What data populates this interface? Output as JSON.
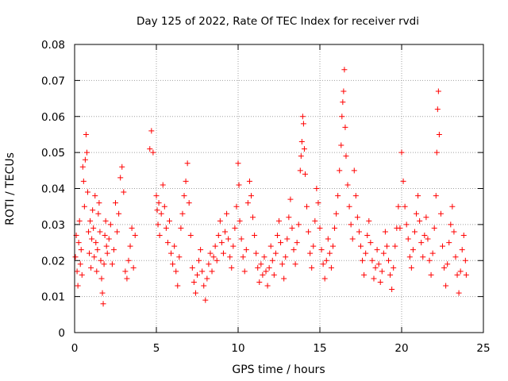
{
  "chart_data": {
    "type": "scatter",
    "title": "Day 125 of 2022, Rate Of TEC Index for receiver rvdi",
    "xlabel": "GPS time / hours",
    "ylabel": "ROTI / TECUs",
    "xlim": [
      0,
      25
    ],
    "ylim": [
      0,
      0.08
    ],
    "x_ticks": [
      0,
      5,
      10,
      15,
      20,
      25
    ],
    "y_ticks": [
      0,
      0.01,
      0.02,
      0.03,
      0.04,
      0.05,
      0.06,
      0.07,
      0.08
    ],
    "x_tick_labels": [
      "0",
      "5",
      "10",
      "15",
      "20",
      "25"
    ],
    "y_tick_labels": [
      "0",
      "0.01",
      "0.02",
      "0.03",
      "0.04",
      "0.05",
      "0.06",
      "0.07",
      "0.08"
    ],
    "grid": true,
    "marker": "plus",
    "color": "#ff0000",
    "series": [
      {
        "points": [
          [
            0.05,
            0.021
          ],
          [
            0.1,
            0.027
          ],
          [
            0.15,
            0.017
          ],
          [
            0.2,
            0.013
          ],
          [
            0.25,
            0.025
          ],
          [
            0.3,
            0.031
          ],
          [
            0.35,
            0.019
          ],
          [
            0.4,
            0.023
          ],
          [
            0.45,
            0.016
          ],
          [
            0.5,
            0.046
          ],
          [
            0.55,
            0.042
          ],
          [
            0.6,
            0.035
          ],
          [
            0.65,
            0.048
          ],
          [
            0.7,
            0.055
          ],
          [
            0.75,
            0.05
          ],
          [
            0.8,
            0.039
          ],
          [
            0.85,
            0.028
          ],
          [
            0.9,
            0.022
          ],
          [
            0.95,
            0.031
          ],
          [
            1.0,
            0.018
          ],
          [
            1.05,
            0.026
          ],
          [
            1.1,
            0.034
          ],
          [
            1.15,
            0.029
          ],
          [
            1.2,
            0.021
          ],
          [
            1.25,
            0.038
          ],
          [
            1.3,
            0.025
          ],
          [
            1.35,
            0.017
          ],
          [
            1.4,
            0.023
          ],
          [
            1.45,
            0.033
          ],
          [
            1.5,
            0.036
          ],
          [
            1.55,
            0.028
          ],
          [
            1.6,
            0.02
          ],
          [
            1.65,
            0.015
          ],
          [
            1.7,
            0.011
          ],
          [
            1.75,
            0.008
          ],
          [
            1.8,
            0.019
          ],
          [
            1.85,
            0.027
          ],
          [
            1.9,
            0.031
          ],
          [
            1.95,
            0.024
          ],
          [
            2.0,
            0.022
          ],
          [
            2.1,
            0.026
          ],
          [
            2.2,
            0.03
          ],
          [
            2.3,
            0.019
          ],
          [
            2.4,
            0.023
          ],
          [
            2.5,
            0.036
          ],
          [
            2.6,
            0.028
          ],
          [
            2.7,
            0.033
          ],
          [
            2.8,
            0.043
          ],
          [
            2.9,
            0.046
          ],
          [
            3.0,
            0.039
          ],
          [
            3.1,
            0.017
          ],
          [
            3.2,
            0.015
          ],
          [
            3.3,
            0.02
          ],
          [
            3.4,
            0.024
          ],
          [
            3.5,
            0.029
          ],
          [
            3.6,
            0.018
          ],
          [
            3.7,
            0.027
          ],
          [
            4.6,
            0.051
          ],
          [
            4.7,
            0.056
          ],
          [
            4.8,
            0.05
          ],
          [
            5.0,
            0.038
          ],
          [
            5.05,
            0.034
          ],
          [
            5.1,
            0.03
          ],
          [
            5.15,
            0.036
          ],
          [
            5.2,
            0.027
          ],
          [
            5.3,
            0.033
          ],
          [
            5.4,
            0.041
          ],
          [
            5.5,
            0.035
          ],
          [
            5.6,
            0.029
          ],
          [
            5.7,
            0.025
          ],
          [
            5.8,
            0.031
          ],
          [
            5.9,
            0.022
          ],
          [
            6.0,
            0.019
          ],
          [
            6.1,
            0.024
          ],
          [
            6.2,
            0.017
          ],
          [
            6.3,
            0.013
          ],
          [
            6.4,
            0.021
          ],
          [
            6.5,
            0.029
          ],
          [
            6.6,
            0.033
          ],
          [
            6.7,
            0.038
          ],
          [
            6.8,
            0.042
          ],
          [
            6.9,
            0.047
          ],
          [
            7.0,
            0.036
          ],
          [
            7.1,
            0.027
          ],
          [
            7.2,
            0.018
          ],
          [
            7.3,
            0.014
          ],
          [
            7.4,
            0.011
          ],
          [
            7.5,
            0.016
          ],
          [
            7.6,
            0.02
          ],
          [
            7.7,
            0.023
          ],
          [
            7.8,
            0.017
          ],
          [
            7.9,
            0.013
          ],
          [
            8.0,
            0.009
          ],
          [
            8.1,
            0.015
          ],
          [
            8.2,
            0.019
          ],
          [
            8.3,
            0.022
          ],
          [
            8.4,
            0.017
          ],
          [
            8.5,
            0.021
          ],
          [
            8.6,
            0.024
          ],
          [
            8.7,
            0.02
          ],
          [
            8.8,
            0.027
          ],
          [
            8.9,
            0.031
          ],
          [
            9.0,
            0.025
          ],
          [
            9.1,
            0.022
          ],
          [
            9.2,
            0.028
          ],
          [
            9.3,
            0.033
          ],
          [
            9.4,
            0.026
          ],
          [
            9.5,
            0.021
          ],
          [
            9.6,
            0.018
          ],
          [
            9.7,
            0.024
          ],
          [
            9.8,
            0.029
          ],
          [
            9.9,
            0.035
          ],
          [
            10.0,
            0.047
          ],
          [
            10.05,
            0.041
          ],
          [
            10.1,
            0.031
          ],
          [
            10.2,
            0.026
          ],
          [
            10.3,
            0.021
          ],
          [
            10.4,
            0.017
          ],
          [
            10.5,
            0.023
          ],
          [
            10.6,
            0.036
          ],
          [
            10.7,
            0.042
          ],
          [
            10.8,
            0.038
          ],
          [
            10.9,
            0.032
          ],
          [
            11.0,
            0.027
          ],
          [
            11.1,
            0.022
          ],
          [
            11.2,
            0.018
          ],
          [
            11.3,
            0.014
          ],
          [
            11.4,
            0.019
          ],
          [
            11.5,
            0.016
          ],
          [
            11.6,
            0.021
          ],
          [
            11.7,
            0.017
          ],
          [
            11.8,
            0.013
          ],
          [
            11.9,
            0.018
          ],
          [
            12.0,
            0.024
          ],
          [
            12.1,
            0.02
          ],
          [
            12.2,
            0.016
          ],
          [
            12.3,
            0.022
          ],
          [
            12.4,
            0.027
          ],
          [
            12.5,
            0.031
          ],
          [
            12.6,
            0.025
          ],
          [
            12.7,
            0.019
          ],
          [
            12.8,
            0.015
          ],
          [
            12.9,
            0.021
          ],
          [
            13.0,
            0.026
          ],
          [
            13.1,
            0.032
          ],
          [
            13.2,
            0.037
          ],
          [
            13.3,
            0.029
          ],
          [
            13.4,
            0.023
          ],
          [
            13.5,
            0.019
          ],
          [
            13.6,
            0.025
          ],
          [
            13.7,
            0.03
          ],
          [
            13.8,
            0.045
          ],
          [
            13.85,
            0.049
          ],
          [
            13.9,
            0.053
          ],
          [
            13.95,
            0.06
          ],
          [
            14.0,
            0.058
          ],
          [
            14.05,
            0.051
          ],
          [
            14.1,
            0.044
          ],
          [
            14.2,
            0.035
          ],
          [
            14.3,
            0.028
          ],
          [
            14.4,
            0.022
          ],
          [
            14.5,
            0.018
          ],
          [
            14.6,
            0.024
          ],
          [
            14.7,
            0.031
          ],
          [
            14.8,
            0.04
          ],
          [
            14.9,
            0.036
          ],
          [
            15.0,
            0.029
          ],
          [
            15.1,
            0.023
          ],
          [
            15.2,
            0.019
          ],
          [
            15.3,
            0.015
          ],
          [
            15.4,
            0.02
          ],
          [
            15.5,
            0.026
          ],
          [
            15.6,
            0.022
          ],
          [
            15.7,
            0.018
          ],
          [
            15.8,
            0.024
          ],
          [
            15.9,
            0.029
          ],
          [
            16.0,
            0.033
          ],
          [
            16.1,
            0.038
          ],
          [
            16.2,
            0.045
          ],
          [
            16.3,
            0.052
          ],
          [
            16.35,
            0.06
          ],
          [
            16.4,
            0.064
          ],
          [
            16.45,
            0.067
          ],
          [
            16.5,
            0.073
          ],
          [
            16.55,
            0.057
          ],
          [
            16.6,
            0.049
          ],
          [
            16.7,
            0.041
          ],
          [
            16.8,
            0.035
          ],
          [
            16.9,
            0.03
          ],
          [
            17.0,
            0.026
          ],
          [
            17.1,
            0.045
          ],
          [
            17.2,
            0.038
          ],
          [
            17.3,
            0.032
          ],
          [
            17.4,
            0.028
          ],
          [
            17.5,
            0.024
          ],
          [
            17.6,
            0.02
          ],
          [
            17.7,
            0.016
          ],
          [
            17.8,
            0.022
          ],
          [
            17.9,
            0.027
          ],
          [
            18.0,
            0.031
          ],
          [
            18.1,
            0.025
          ],
          [
            18.2,
            0.02
          ],
          [
            18.3,
            0.015
          ],
          [
            18.4,
            0.018
          ],
          [
            18.5,
            0.023
          ],
          [
            18.6,
            0.019
          ],
          [
            18.7,
            0.014
          ],
          [
            18.8,
            0.017
          ],
          [
            18.9,
            0.022
          ],
          [
            19.0,
            0.028
          ],
          [
            19.1,
            0.024
          ],
          [
            19.2,
            0.02
          ],
          [
            19.3,
            0.016
          ],
          [
            19.4,
            0.012
          ],
          [
            19.5,
            0.018
          ],
          [
            19.6,
            0.024
          ],
          [
            19.7,
            0.029
          ],
          [
            19.8,
            0.035
          ],
          [
            19.9,
            0.029
          ],
          [
            20.0,
            0.05
          ],
          [
            20.1,
            0.042
          ],
          [
            20.2,
            0.035
          ],
          [
            20.3,
            0.03
          ],
          [
            20.4,
            0.026
          ],
          [
            20.5,
            0.021
          ],
          [
            20.6,
            0.018
          ],
          [
            20.7,
            0.023
          ],
          [
            20.8,
            0.028
          ],
          [
            20.9,
            0.033
          ],
          [
            21.0,
            0.038
          ],
          [
            21.1,
            0.031
          ],
          [
            21.2,
            0.025
          ],
          [
            21.3,
            0.021
          ],
          [
            21.4,
            0.027
          ],
          [
            21.5,
            0.032
          ],
          [
            21.6,
            0.026
          ],
          [
            21.7,
            0.02
          ],
          [
            21.8,
            0.016
          ],
          [
            21.9,
            0.022
          ],
          [
            22.0,
            0.029
          ],
          [
            22.1,
            0.038
          ],
          [
            22.15,
            0.05
          ],
          [
            22.2,
            0.062
          ],
          [
            22.25,
            0.067
          ],
          [
            22.3,
            0.055
          ],
          [
            22.4,
            0.033
          ],
          [
            22.5,
            0.024
          ],
          [
            22.6,
            0.018
          ],
          [
            22.7,
            0.013
          ],
          [
            22.8,
            0.019
          ],
          [
            22.9,
            0.025
          ],
          [
            23.0,
            0.03
          ],
          [
            23.1,
            0.035
          ],
          [
            23.2,
            0.028
          ],
          [
            23.3,
            0.021
          ],
          [
            23.4,
            0.016
          ],
          [
            23.5,
            0.011
          ],
          [
            23.6,
            0.017
          ],
          [
            23.7,
            0.023
          ],
          [
            23.8,
            0.027
          ],
          [
            23.9,
            0.02
          ],
          [
            23.95,
            0.016
          ]
        ]
      }
    ]
  }
}
